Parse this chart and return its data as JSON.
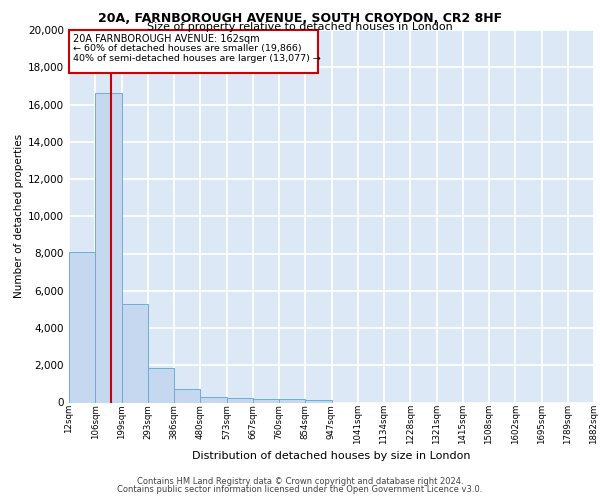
{
  "title1": "20A, FARNBOROUGH AVENUE, SOUTH CROYDON, CR2 8HF",
  "title2": "Size of property relative to detached houses in London",
  "xlabel": "Distribution of detached houses by size in London",
  "ylabel": "Number of detached properties",
  "bin_labels": [
    "12sqm",
    "106sqm",
    "199sqm",
    "293sqm",
    "386sqm",
    "480sqm",
    "573sqm",
    "667sqm",
    "760sqm",
    "854sqm",
    "947sqm",
    "1041sqm",
    "1134sqm",
    "1228sqm",
    "1321sqm",
    "1415sqm",
    "1508sqm",
    "1602sqm",
    "1695sqm",
    "1789sqm",
    "1882sqm"
  ],
  "bar_heights": [
    8100,
    16600,
    5300,
    1850,
    700,
    300,
    220,
    180,
    170,
    150,
    0,
    0,
    0,
    0,
    0,
    0,
    0,
    0,
    0,
    0
  ],
  "property_label": "20A FARNBOROUGH AVENUE: 162sqm",
  "annotation_line1": "← 60% of detached houses are smaller (19,866)",
  "annotation_line2": "40% of semi-detached houses are larger (13,077) →",
  "bar_color": "#c5d8ef",
  "bar_edge_color": "#6baed6",
  "vline_color": "#cc0000",
  "box_edge_color": "#cc0000",
  "background_color": "#dce8f5",
  "grid_color": "#ffffff",
  "ylim": [
    0,
    20000
  ],
  "yticks": [
    0,
    2000,
    4000,
    6000,
    8000,
    10000,
    12000,
    14000,
    16000,
    18000,
    20000
  ],
  "footnote1": "Contains HM Land Registry data © Crown copyright and database right 2024.",
  "footnote2": "Contains public sector information licensed under the Open Government Licence v3.0."
}
